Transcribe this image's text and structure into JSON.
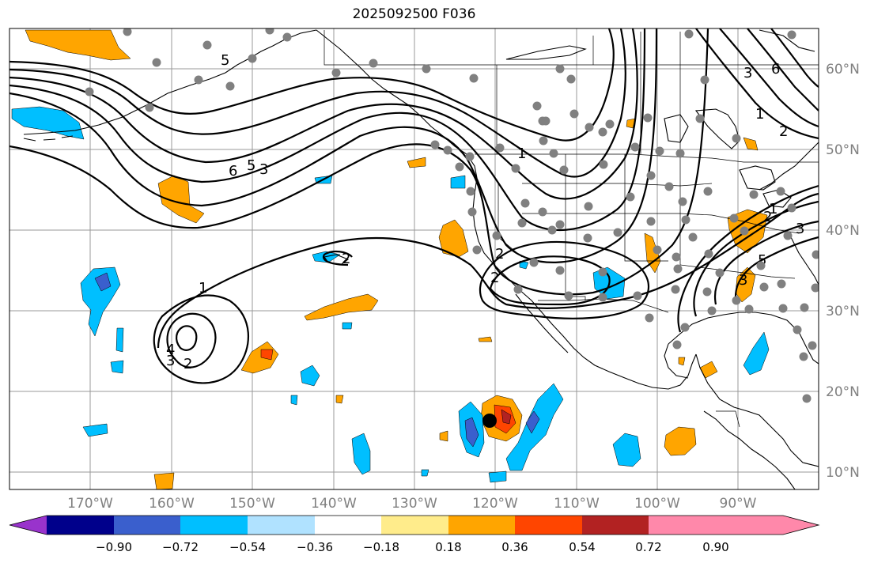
{
  "title": "2025092500 F036",
  "lon_labels": [
    "170°W",
    "160°W",
    "150°W",
    "140°W",
    "130°W",
    "120°W",
    "110°W",
    "100°W",
    "90°W"
  ],
  "lat_labels": [
    "60°N",
    "50°N",
    "40°N",
    "30°N",
    "20°N",
    "10°N"
  ],
  "colorbar": {
    "colors": [
      "#9933cc",
      "#00008b",
      "#3a5fcd",
      "#00bfff",
      "#b0e2ff",
      "#ffffff",
      "#ffec8b",
      "#ffa500",
      "#ff4500",
      "#b22222",
      "#ff88aa"
    ],
    "tick_labels": [
      "−0.90",
      "−0.72",
      "−0.54",
      "−0.36",
      "−0.18",
      "0.18",
      "0.36",
      "0.54",
      "0.72",
      "0.90"
    ]
  },
  "contour_labels": [
    "5",
    "6",
    "5",
    "3",
    "1",
    "2",
    "2",
    "4",
    "3",
    "2",
    "1",
    "2",
    "3",
    "3",
    "5",
    "6",
    "1",
    "2",
    "2",
    "1",
    "3"
  ]
}
